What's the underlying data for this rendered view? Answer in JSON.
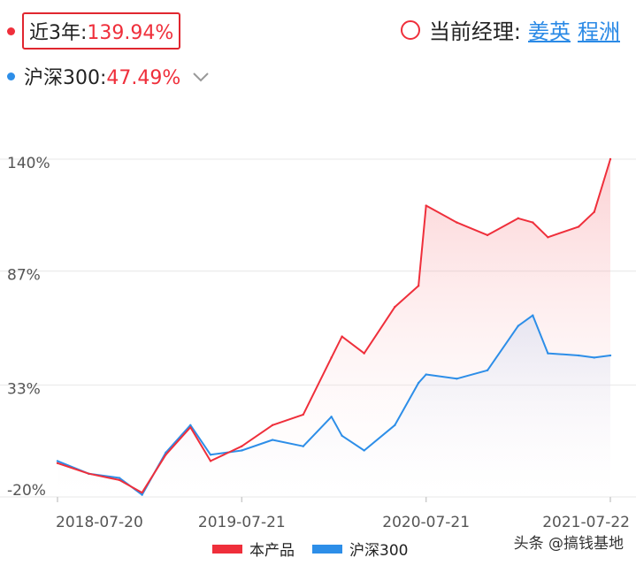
{
  "summary": {
    "fund": {
      "label": "近3年:",
      "value": "139.94%",
      "color": "#ef2f3b"
    },
    "benchmark": {
      "label": "沪深300:",
      "value": "47.49%",
      "color": "#2d8ee8"
    },
    "manager_label": "当前经理:",
    "managers": [
      "姜英",
      "程洲"
    ]
  },
  "chart_data": {
    "type": "line",
    "title": "",
    "xlabel": "",
    "ylabel": "",
    "x_ticks": [
      "2018-07-20",
      "2019-07-21",
      "2020-07-21",
      "2021-07-22"
    ],
    "y_ticks": [
      "140%",
      "87%",
      "33%",
      "-20%"
    ],
    "ylim": [
      -20,
      140
    ],
    "grid": true,
    "legend_position": "bottom",
    "x": [
      "2018-07-20",
      "2018-09-20",
      "2018-11-20",
      "2019-01-04",
      "2019-02-20",
      "2019-04-10",
      "2019-05-20",
      "2019-07-21",
      "2019-09-20",
      "2019-11-20",
      "2020-01-15",
      "2020-02-05",
      "2020-03-20",
      "2020-05-20",
      "2020-07-06",
      "2020-07-21",
      "2020-09-20",
      "2020-11-20",
      "2021-01-20",
      "2021-02-18",
      "2021-03-20",
      "2021-05-20",
      "2021-06-20",
      "2021-07-22"
    ],
    "series": [
      {
        "name": "本产品",
        "color": "#ef2f3b",
        "values": [
          -4,
          -9,
          -12,
          -18,
          0,
          13,
          -3,
          4,
          14,
          19,
          46,
          56,
          48,
          70,
          80,
          118,
          110,
          104,
          112,
          110,
          103,
          108,
          115,
          140
        ]
      },
      {
        "name": "沪深300",
        "color": "#2d8ee8",
        "values": [
          -3,
          -9,
          -11,
          -19,
          1,
          14,
          0,
          2,
          7,
          4,
          18,
          9,
          2,
          14,
          34,
          38,
          36,
          40,
          61,
          66,
          48,
          47,
          46,
          47
        ]
      }
    ]
  },
  "watermark": "头条 @搞钱基地"
}
